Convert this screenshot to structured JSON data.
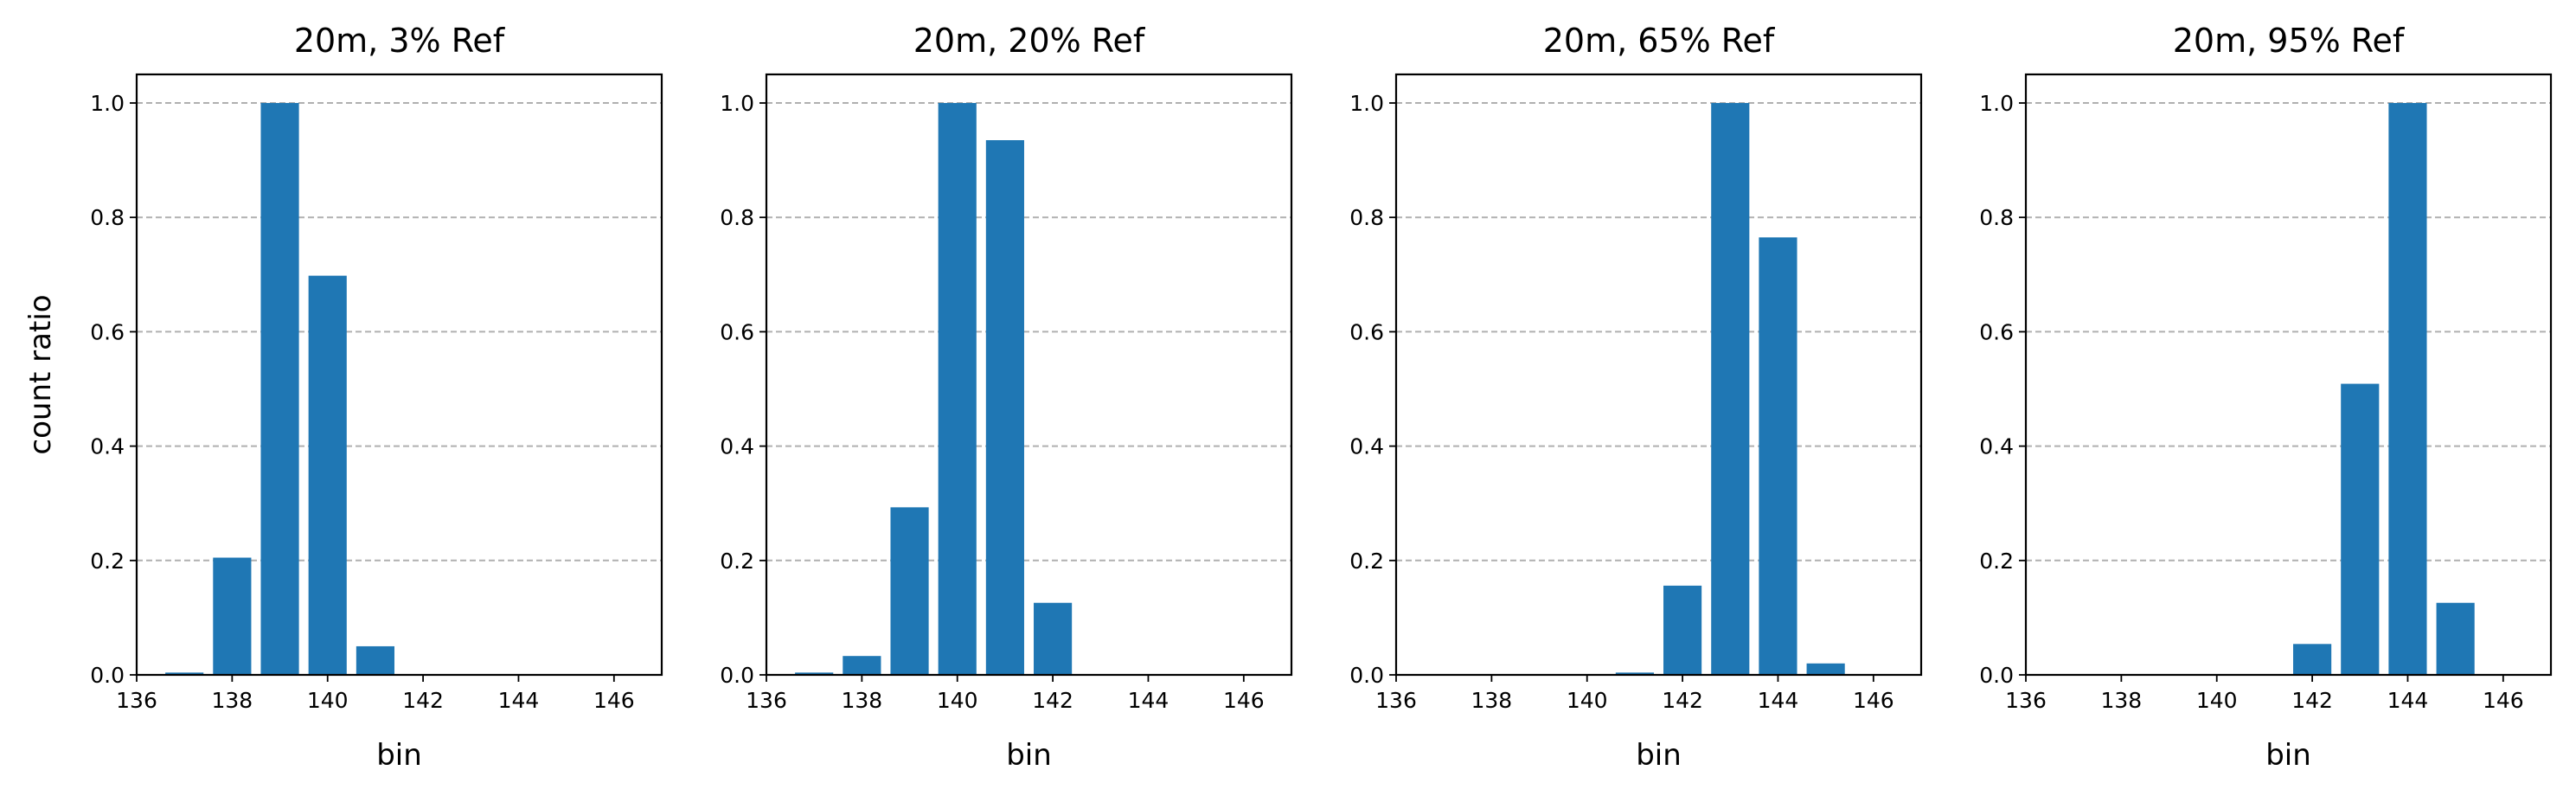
{
  "chart_data": [
    {
      "type": "bar",
      "title": "20m, 3% Ref",
      "xlabel": "bin",
      "ylabel": "count ratio",
      "xlim": [
        136,
        147
      ],
      "ylim": [
        0,
        1.05
      ],
      "xticks": [
        136,
        138,
        140,
        142,
        144,
        146
      ],
      "yticks": [
        0.0,
        0.2,
        0.4,
        0.6,
        0.8,
        1.0
      ],
      "grid": "y-dashed",
      "color": "#1f77b4",
      "x": [
        137,
        138,
        139,
        140,
        141
      ],
      "values": [
        0.004,
        0.205,
        1.0,
        0.698,
        0.05
      ]
    },
    {
      "type": "bar",
      "title": "20m, 20% Ref",
      "xlabel": "bin",
      "ylabel": "",
      "xlim": [
        136,
        147
      ],
      "ylim": [
        0,
        1.05
      ],
      "xticks": [
        136,
        138,
        140,
        142,
        144,
        146
      ],
      "yticks": [
        0.0,
        0.2,
        0.4,
        0.6,
        0.8,
        1.0
      ],
      "grid": "y-dashed",
      "color": "#1f77b4",
      "x": [
        137,
        138,
        139,
        140,
        141,
        142
      ],
      "values": [
        0.004,
        0.033,
        0.293,
        1.0,
        0.935,
        0.126
      ]
    },
    {
      "type": "bar",
      "title": "20m, 65% Ref",
      "xlabel": "bin",
      "ylabel": "",
      "xlim": [
        136,
        147
      ],
      "ylim": [
        0,
        1.05
      ],
      "xticks": [
        136,
        138,
        140,
        142,
        144,
        146
      ],
      "yticks": [
        0.0,
        0.2,
        0.4,
        0.6,
        0.8,
        1.0
      ],
      "grid": "y-dashed",
      "color": "#1f77b4",
      "x": [
        141,
        142,
        143,
        144,
        145
      ],
      "values": [
        0.004,
        0.156,
        1.0,
        0.765,
        0.02
      ]
    },
    {
      "type": "bar",
      "title": "20m, 95% Ref",
      "xlabel": "bin",
      "ylabel": "",
      "xlim": [
        136,
        147
      ],
      "ylim": [
        0,
        1.05
      ],
      "xticks": [
        136,
        138,
        140,
        142,
        144,
        146
      ],
      "yticks": [
        0.0,
        0.2,
        0.4,
        0.6,
        0.8,
        1.0
      ],
      "grid": "y-dashed",
      "color": "#1f77b4",
      "x": [
        142,
        143,
        144,
        145
      ],
      "values": [
        0.054,
        0.509,
        1.0,
        0.126
      ]
    }
  ]
}
